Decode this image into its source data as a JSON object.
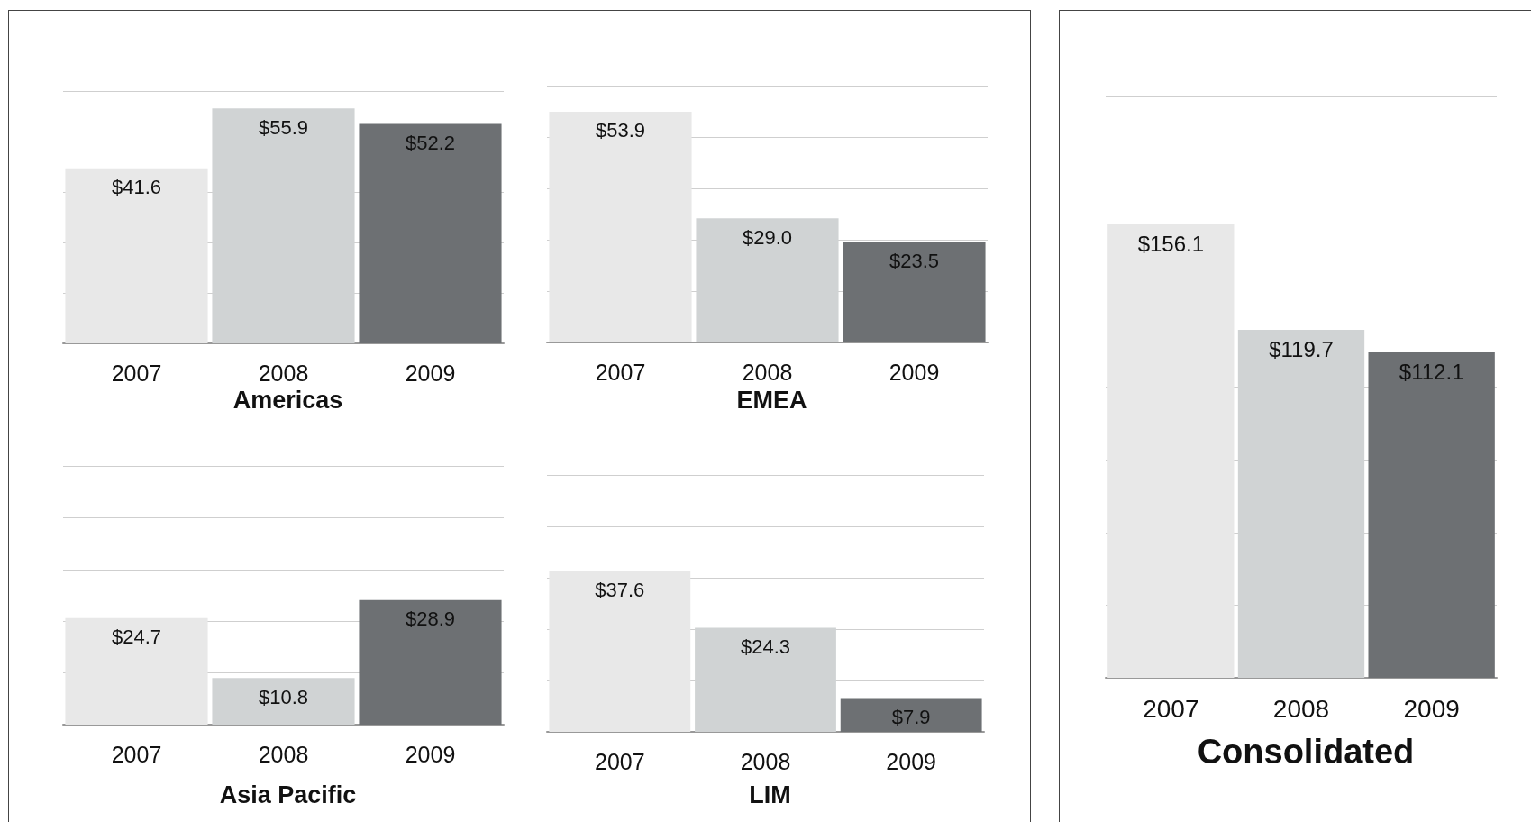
{
  "chart_data": [
    {
      "type": "bar",
      "title": "Americas",
      "categories": [
        "2007",
        "2008",
        "2009"
      ],
      "values": [
        41.6,
        55.9,
        52.2
      ],
      "value_labels": [
        "$41.6",
        "$55.9",
        "$52.2"
      ],
      "colors": [
        "#e8e8e8",
        "#d0d3d4",
        "#6d7073"
      ],
      "ylim": [
        0,
        60
      ],
      "yticks": [
        {
          "value": 0,
          "label": null
        },
        {
          "value": 12,
          "label": null
        },
        {
          "value": 24,
          "label": null
        },
        {
          "value": 36,
          "label": null
        },
        {
          "value": 48,
          "label": null
        },
        {
          "value": 60,
          "label": null
        }
      ],
      "grid": "y",
      "tick_labels": "x"
    },
    {
      "type": "bar",
      "title": "EMEA",
      "categories": [
        "2007",
        "2008",
        "2009"
      ],
      "values": [
        53.9,
        29.0,
        23.5
      ],
      "value_labels": [
        "$53.9",
        "$29.0",
        "$23.5"
      ],
      "colors": [
        "#e8e8e8",
        "#d0d3d4",
        "#6d7073"
      ],
      "ylim": [
        0,
        60
      ],
      "yticks": [
        {
          "value": 0,
          "label": null
        },
        {
          "value": 12,
          "label": null
        },
        {
          "value": 24,
          "label": null
        },
        {
          "value": 36,
          "label": null
        },
        {
          "value": 48,
          "label": null
        },
        {
          "value": 60,
          "label": null
        }
      ],
      "grid": "y",
      "tick_labels": "x"
    },
    {
      "type": "bar",
      "title": "Asia Pacific",
      "categories": [
        "2007",
        "2008",
        "2009"
      ],
      "values": [
        24.7,
        10.8,
        28.9
      ],
      "value_labels": [
        "$24.7",
        "$10.8",
        "$28.9"
      ],
      "colors": [
        "#e8e8e8",
        "#d0d3d4",
        "#6d7073"
      ],
      "ylim": [
        0,
        60
      ],
      "yticks": [
        {
          "value": 0,
          "label": null
        },
        {
          "value": 12,
          "label": null
        },
        {
          "value": 24,
          "label": null
        },
        {
          "value": 36,
          "label": null
        },
        {
          "value": 48,
          "label": null
        },
        {
          "value": 60,
          "label": null
        }
      ],
      "grid": "y",
      "tick_labels": "x"
    },
    {
      "type": "bar",
      "title": "LIM",
      "categories": [
        "2007",
        "2008",
        "2009"
      ],
      "values": [
        37.6,
        24.3,
        7.9
      ],
      "value_labels": [
        "$37.6",
        "$24.3",
        "$7.9"
      ],
      "colors": [
        "#e8e8e8",
        "#d0d3d4",
        "#6d7073"
      ],
      "ylim": [
        0,
        60
      ],
      "yticks": [
        {
          "value": 0,
          "label": null
        },
        {
          "value": 12,
          "label": null
        },
        {
          "value": 24,
          "label": null
        },
        {
          "value": 36,
          "label": null
        },
        {
          "value": 48,
          "label": null
        },
        {
          "value": 60,
          "label": null
        }
      ],
      "grid": "y",
      "tick_labels": "x"
    },
    {
      "type": "bar",
      "title": "Consolidated",
      "categories": [
        "2007",
        "2008",
        "2009"
      ],
      "values": [
        156.1,
        119.7,
        112.1
      ],
      "value_labels": [
        "$156.1",
        "$119.7",
        "$112.1"
      ],
      "colors": [
        "#e8e8e8",
        "#d0d3d4",
        "#6d7073"
      ],
      "ylim": [
        0,
        200
      ],
      "yticks": [
        {
          "value": 0,
          "label": null
        },
        {
          "value": 25,
          "label": null
        },
        {
          "value": 50,
          "label": null
        },
        {
          "value": 75,
          "label": null
        },
        {
          "value": 100,
          "label": null
        },
        {
          "value": 125,
          "label": null
        },
        {
          "value": 150,
          "label": null
        },
        {
          "value": 175,
          "label": null
        },
        {
          "value": 200,
          "label": null
        }
      ],
      "grid": "y",
      "tick_labels": "x"
    }
  ]
}
